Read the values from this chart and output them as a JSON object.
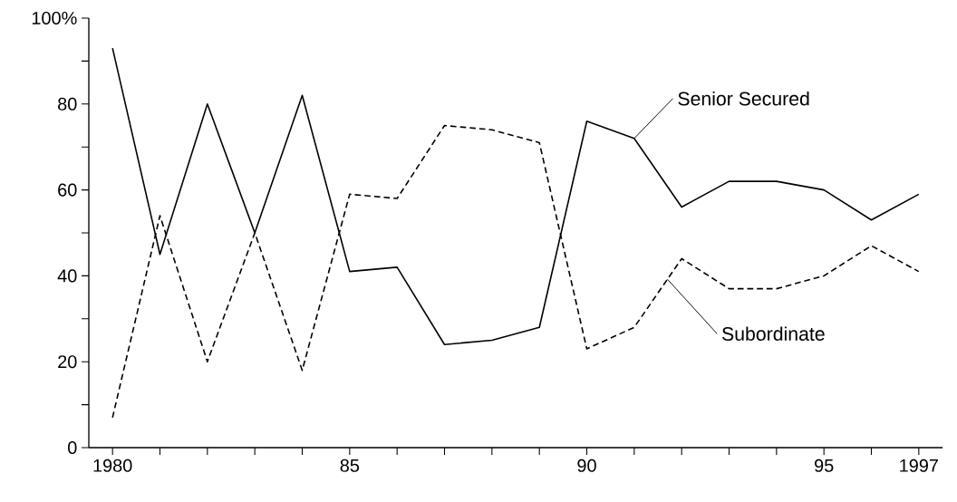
{
  "chart_data": {
    "type": "line",
    "x": [
      1980,
      1981,
      1982,
      1983,
      1984,
      1985,
      1986,
      1987,
      1988,
      1989,
      1990,
      1991,
      1992,
      1993,
      1994,
      1995,
      1996,
      1997
    ],
    "series": [
      {
        "name": "Senior Secured",
        "color": "#000000",
        "line_style": "solid",
        "values": [
          93,
          45,
          80,
          50,
          82,
          41,
          42,
          24,
          25,
          28,
          76,
          72,
          56,
          62,
          62,
          60,
          53,
          59
        ]
      },
      {
        "name": "Subordinate",
        "color": "#000000",
        "line_style": "dashed",
        "values": [
          7,
          54,
          20,
          50,
          18,
          59,
          58,
          75,
          74,
          71,
          23,
          28,
          44,
          37,
          37,
          40,
          47,
          41
        ]
      }
    ],
    "xlim": [
      1979.5,
      1997.5
    ],
    "xticks": [
      {
        "value": 1980,
        "label": "1980"
      },
      {
        "value": 1981,
        "label": null
      },
      {
        "value": 1982,
        "label": null
      },
      {
        "value": 1983,
        "label": null
      },
      {
        "value": 1984,
        "label": null
      },
      {
        "value": 1985,
        "label": "85"
      },
      {
        "value": 1986,
        "label": null
      },
      {
        "value": 1987,
        "label": null
      },
      {
        "value": 1988,
        "label": null
      },
      {
        "value": 1989,
        "label": null
      },
      {
        "value": 1990,
        "label": "90"
      },
      {
        "value": 1991,
        "label": null
      },
      {
        "value": 1992,
        "label": null
      },
      {
        "value": 1993,
        "label": null
      },
      {
        "value": 1994,
        "label": null
      },
      {
        "value": 1995,
        "label": "95"
      },
      {
        "value": 1996,
        "label": null
      },
      {
        "value": 1997,
        "label": "1997"
      }
    ],
    "ylim": [
      0,
      100
    ],
    "yticks": [
      0,
      {
        "value": 10,
        "label": null
      },
      20,
      {
        "value": 30,
        "label": null
      },
      40,
      {
        "value": 50,
        "label": null
      },
      60,
      {
        "value": 70,
        "label": null
      },
      80,
      {
        "value": 90,
        "label": null
      },
      {
        "value": 100,
        "label": "100%"
      }
    ],
    "grid": false,
    "legend": false,
    "marker": "none"
  }
}
